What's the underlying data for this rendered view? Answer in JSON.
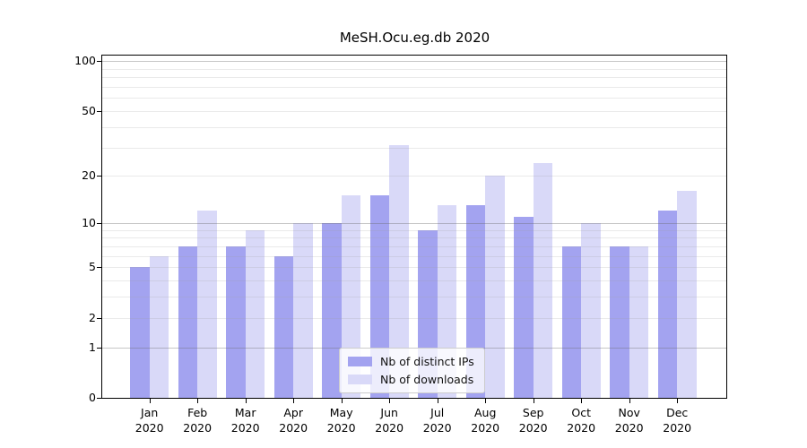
{
  "chart_data": {
    "type": "bar",
    "title": "MeSH.Ocu.eg.db 2020",
    "scale": "log1p",
    "grid": true,
    "legend_position": "lower center",
    "year": "2020",
    "categories": [
      "Jan",
      "Feb",
      "Mar",
      "Apr",
      "May",
      "Jun",
      "Jul",
      "Aug",
      "Sep",
      "Oct",
      "Nov",
      "Dec"
    ],
    "series": [
      {
        "name": "Nb of distinct IPs",
        "color": "#a3a3f0",
        "values": [
          5,
          7,
          7,
          6,
          10,
          15,
          9,
          13,
          11,
          7,
          7,
          12
        ]
      },
      {
        "name": "Nb of downloads",
        "color": "#d9d9f8",
        "values": [
          6,
          12,
          9,
          10,
          15,
          31,
          13,
          20,
          24,
          10,
          7,
          16
        ]
      }
    ],
    "y_ticks": [
      100,
      50,
      20,
      10,
      5,
      2,
      1,
      0
    ],
    "gridlines_strong": [
      1,
      10,
      100
    ],
    "gridlines_light": [
      2,
      3,
      4,
      5,
      6,
      7,
      8,
      9,
      20,
      30,
      40,
      50,
      60,
      70,
      80,
      90
    ],
    "ylim": [
      0,
      110
    ],
    "xlabel": "",
    "ylabel": ""
  }
}
